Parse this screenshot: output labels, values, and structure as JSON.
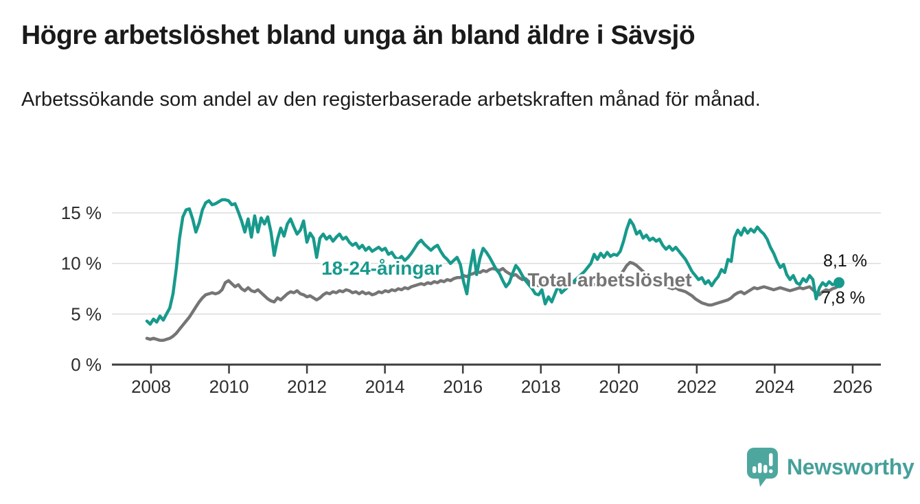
{
  "title": "Högre arbetslöshet bland unga än bland äldre i Sävsjö",
  "subtitle": "Arbetssökande som andel av den registerbaserade arbetskraften månad för månad.",
  "logo": {
    "text": "Newsworthy",
    "icon": "speech-bubble-bar-chart-icon",
    "color": "#46a09a"
  },
  "colors": {
    "youth_line": "#179a8c",
    "total_line": "#757575",
    "grid": "#dcdcdc",
    "axis": "#3d3d3d",
    "title_text": "#1a1a1a",
    "end_dot": "#179a8c"
  },
  "chart_data": {
    "type": "line",
    "frequency": "monthly",
    "x_start": "2008-01",
    "x_end": "2025-09",
    "x_ticks": [
      "2008",
      "2010",
      "2012",
      "2014",
      "2016",
      "2018",
      "2020",
      "2022",
      "2024",
      "2026"
    ],
    "y_ticks": [
      "0 %",
      "5 %",
      "10 %",
      "15 %"
    ],
    "ylim": [
      0,
      17
    ],
    "grid": true,
    "legend_position": "inline-labels",
    "annotations": [
      {
        "id": "youth-label",
        "text": "18-24-åringar",
        "color": "#179a8c"
      },
      {
        "id": "total-label",
        "text": "Total arbetslöshet",
        "color": "#757575"
      },
      {
        "id": "youth-end-value",
        "text": "8,1 %",
        "color": "#111111"
      },
      {
        "id": "total-end-value",
        "text": "7,8 %",
        "color": "#111111"
      }
    ],
    "series": [
      {
        "name": "Total arbetslöshet",
        "color": "#757575",
        "end_value": 7.8,
        "values": [
          2.6,
          2.5,
          2.6,
          2.5,
          2.4,
          2.4,
          2.5,
          2.6,
          2.8,
          3.1,
          3.5,
          3.9,
          4.3,
          4.7,
          5.2,
          5.7,
          6.2,
          6.6,
          6.9,
          7.0,
          7.1,
          7.0,
          7.1,
          7.4,
          8.1,
          8.3,
          8.0,
          7.7,
          7.9,
          7.5,
          7.3,
          7.6,
          7.3,
          7.2,
          7.4,
          7.1,
          6.8,
          6.5,
          6.3,
          6.2,
          6.6,
          6.4,
          6.7,
          7.0,
          7.2,
          7.1,
          7.3,
          7.0,
          6.9,
          6.7,
          6.8,
          6.6,
          6.4,
          6.6,
          6.9,
          7.1,
          7.0,
          7.2,
          7.1,
          7.3,
          7.2,
          7.4,
          7.3,
          7.1,
          7.2,
          7.0,
          7.2,
          7.0,
          7.1,
          6.9,
          7.0,
          7.2,
          7.1,
          7.3,
          7.2,
          7.4,
          7.3,
          7.5,
          7.4,
          7.6,
          7.5,
          7.7,
          7.8,
          7.9,
          8.0,
          7.9,
          8.1,
          8.0,
          8.2,
          8.1,
          8.3,
          8.2,
          8.4,
          8.3,
          8.5,
          8.6,
          8.6,
          8.8,
          8.7,
          8.9,
          9.0,
          9.2,
          9.1,
          9.3,
          9.2,
          9.4,
          9.5,
          9.4,
          9.3,
          9.5,
          9.2,
          9.0,
          8.8,
          8.9,
          8.6,
          8.4,
          8.5,
          8.2,
          8.0,
          7.9,
          7.8,
          8.0,
          8.2,
          8.1,
          8.3,
          8.2,
          8.4,
          8.3,
          8.2,
          8.1,
          8.2,
          8.1,
          8.2,
          8.1,
          8.0,
          8.1,
          8.0,
          7.9,
          8.0,
          7.9,
          8.0,
          8.1,
          8.3,
          8.5,
          8.7,
          8.9,
          9.3,
          9.8,
          10.1,
          10.0,
          9.8,
          9.5,
          9.2,
          8.9,
          8.6,
          8.4,
          8.2,
          8.0,
          7.8,
          7.7,
          7.6,
          7.5,
          7.6,
          7.4,
          7.3,
          7.2,
          7.0,
          6.8,
          6.5,
          6.3,
          6.1,
          6.0,
          5.9,
          5.9,
          6.0,
          6.1,
          6.2,
          6.3,
          6.4,
          6.6,
          6.9,
          7.1,
          7.2,
          7.0,
          7.2,
          7.4,
          7.6,
          7.5,
          7.6,
          7.7,
          7.6,
          7.5,
          7.4,
          7.5,
          7.6,
          7.5,
          7.4,
          7.3,
          7.4,
          7.5,
          7.6,
          7.5,
          7.6,
          7.7,
          7.4,
          7.1,
          6.9,
          7.2,
          7.4,
          7.3,
          7.5,
          7.6,
          7.8
        ]
      },
      {
        "name": "18-24-åringar",
        "color": "#179a8c",
        "end_value": 8.1,
        "values": [
          4.3,
          4.0,
          4.5,
          4.2,
          4.8,
          4.4,
          5.0,
          5.6,
          7.0,
          9.5,
          12.5,
          14.6,
          15.3,
          15.4,
          14.4,
          13.1,
          14.0,
          15.3,
          16.0,
          16.2,
          15.8,
          15.9,
          16.1,
          16.3,
          16.3,
          16.2,
          15.8,
          15.9,
          15.1,
          14.2,
          13.1,
          14.4,
          12.6,
          14.7,
          13.1,
          14.5,
          13.9,
          14.6,
          13.1,
          10.8,
          12.4,
          13.5,
          12.7,
          13.9,
          14.4,
          13.6,
          12.9,
          13.3,
          14.2,
          12.1,
          13.0,
          12.5,
          10.6,
          12.5,
          12.9,
          12.4,
          12.7,
          12.2,
          12.6,
          12.9,
          12.4,
          12.6,
          12.1,
          11.8,
          12.0,
          11.5,
          11.8,
          11.3,
          11.6,
          11.2,
          11.4,
          11.6,
          11.3,
          11.5,
          10.9,
          11.1,
          10.6,
          10.4,
          10.7,
          10.3,
          10.6,
          11.0,
          11.5,
          12.0,
          12.3,
          11.9,
          11.6,
          11.3,
          11.6,
          11.8,
          11.2,
          10.7,
          10.4,
          10.0,
          10.3,
          10.6,
          9.9,
          8.2,
          7.0,
          9.5,
          11.3,
          8.9,
          10.5,
          11.5,
          11.1,
          10.6,
          10.0,
          9.4,
          9.0,
          8.3,
          7.7,
          8.1,
          9.0,
          9.8,
          9.4,
          8.8,
          8.3,
          7.9,
          7.5,
          7.0,
          6.9,
          7.4,
          6.0,
          6.7,
          6.2,
          7.0,
          7.8,
          7.1,
          7.4,
          7.7,
          8.0,
          8.3,
          8.6,
          8.9,
          9.2,
          9.6,
          10.0,
          10.9,
          10.4,
          11.0,
          10.6,
          11.1,
          10.7,
          10.9,
          10.8,
          11.2,
          12.2,
          13.4,
          14.3,
          13.8,
          12.9,
          13.2,
          12.5,
          12.8,
          12.3,
          12.5,
          12.2,
          12.4,
          11.8,
          11.4,
          11.7,
          11.3,
          11.6,
          11.2,
          10.8,
          10.4,
          9.8,
          9.2,
          8.8,
          8.4,
          8.6,
          8.0,
          8.3,
          7.8,
          8.3,
          8.7,
          9.4,
          9.1,
          10.4,
          10.2,
          12.6,
          13.3,
          12.8,
          13.5,
          13.0,
          13.4,
          13.1,
          13.6,
          13.2,
          12.9,
          12.4,
          11.6,
          11.0,
          10.2,
          9.6,
          9.9,
          8.9,
          8.4,
          8.8,
          8.1,
          7.9,
          8.5,
          8.2,
          8.8,
          8.4,
          6.5,
          7.6,
          8.1,
          7.8,
          8.2,
          7.9,
          8.0,
          8.1
        ]
      }
    ]
  }
}
